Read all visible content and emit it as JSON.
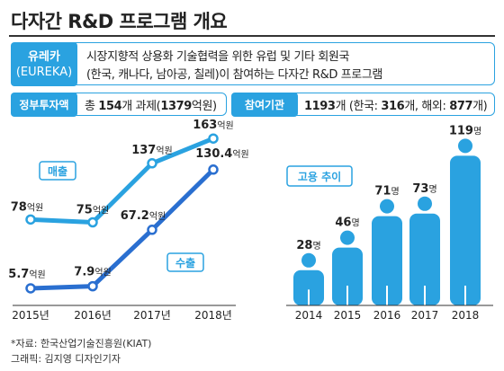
{
  "header": {
    "title": "다자간 R&D 프로그램 개요"
  },
  "eureka": {
    "tag_line1": "유레카",
    "tag_line2": "(EUREKA)",
    "desc_line1": "시장지향적 상용화 기술협력을 위한 유럽 및 기타 회원국",
    "desc_line2": "(한국, 캐나다, 남아공, 칠레)이 참여하는 다자간 R&D 프로그램"
  },
  "budget": {
    "tag": "정부투자액",
    "prefix": "총 ",
    "count": "154",
    "mid": "개 과제(",
    "amount": "1379",
    "suffix": "억원)"
  },
  "participants": {
    "tag": "참여기관",
    "total": "1193",
    "t1": "개 (한국: ",
    "korea": "316",
    "t2": "개, 해외: ",
    "overseas": "877",
    "t3": "개)"
  },
  "colors": {
    "accent": "#2aa2e0",
    "sales": "#2aa2e0",
    "export": "#2a6fd0"
  },
  "chart_data": [
    {
      "type": "line",
      "categories": [
        "2015년",
        "2016년",
        "2017년",
        "2018년"
      ],
      "unit": "억원",
      "series": [
        {
          "name": "매출",
          "values": [
            78,
            75,
            137,
            163
          ],
          "labels": [
            "78",
            "75",
            "137",
            "163"
          ]
        },
        {
          "name": "수출",
          "values": [
            5.7,
            7.9,
            67.2,
            130.4
          ],
          "labels": [
            "5.7",
            "7.9",
            "67.2",
            "130.4"
          ]
        }
      ]
    },
    {
      "type": "bar",
      "title": "고용 추이",
      "categories": [
        "2014",
        "2015",
        "2016",
        "2017",
        "2018"
      ],
      "values": [
        28,
        46,
        71,
        73,
        119
      ],
      "unit": "명"
    }
  ],
  "footer": {
    "source": "*자료:  한국산업기술진흥원(KIAT)",
    "credit": "그래픽:  김지영 디자인기자"
  }
}
